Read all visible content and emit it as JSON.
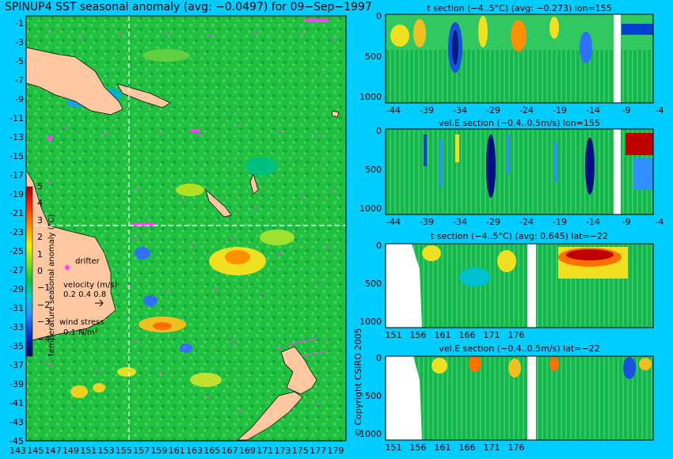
{
  "title": "SPINUP4 SST seasonal anomaly (avg: −0.0497) for 09−Sep−1997",
  "copyright": "© Copyright CSIRO 2005",
  "colors": {
    "background": "#00cdff",
    "land": "#ffc8a0",
    "vector": "#ff40ff"
  },
  "chart_data": [
    {
      "type": "heatmap",
      "name": "map",
      "xticks": [
        "143",
        "145",
        "147",
        "149",
        "151",
        "153",
        "155",
        "157",
        "159",
        "161",
        "163",
        "165",
        "167",
        "169",
        "171",
        "173",
        "175",
        "177",
        "179"
      ],
      "yticks": [
        "-1",
        "-3",
        "-5",
        "-7",
        "-9",
        "-11",
        "-13",
        "-15",
        "-17",
        "-19",
        "-21",
        "-23",
        "-25",
        "-27",
        "-29",
        "-31",
        "-33",
        "-35",
        "-37",
        "-39",
        "-41",
        "-43",
        "-45"
      ],
      "xlim": [
        143,
        180
      ],
      "ylim": [
        -45,
        0
      ],
      "colorbar": {
        "label": "temperature seasonal anomaly (°C)",
        "ticks": [
          "5",
          "4",
          "3",
          "2",
          "1",
          "0",
          "−1",
          "−2",
          "−3",
          "−4"
        ]
      },
      "legend": {
        "drifter": "drifter",
        "velocity_label": "velocity (m/s)",
        "velocity_values": "0.2 0.4 0.8",
        "stress_label": "wind stress",
        "stress_value": "0.1 N/m²"
      },
      "section_lines": {
        "lon": 155,
        "lat": -22
      }
    },
    {
      "type": "heatmap",
      "title": "t section (−4..5°C) (avg: −0.273) lon=155",
      "xticks": [
        "-44",
        "-39",
        "-34",
        "-29",
        "-24",
        "-19",
        "-14",
        "-9",
        "-4"
      ],
      "yticks": [
        "0",
        "500",
        "1000"
      ]
    },
    {
      "type": "heatmap",
      "title": "vel.E section (−0.4..0.5m/s) lon=155",
      "xticks": [
        "-44",
        "-39",
        "-34",
        "-29",
        "-24",
        "-19",
        "-14",
        "-9",
        "-4"
      ],
      "yticks": [
        "0",
        "500",
        "1000"
      ]
    },
    {
      "type": "heatmap",
      "title": "t section (−4..5°C) (avg: 0.645) lat=−22",
      "xticks": [
        "151",
        "156",
        "161",
        "166",
        "171",
        "176"
      ],
      "yticks": [
        "0",
        "500",
        "1000"
      ]
    },
    {
      "type": "heatmap",
      "title": "vel.E section (−0.4..0.5m/s) lat=−22",
      "xticks": [
        "151",
        "156",
        "161",
        "166",
        "171",
        "176"
      ],
      "yticks": [
        "0",
        "500",
        "1000"
      ]
    }
  ]
}
